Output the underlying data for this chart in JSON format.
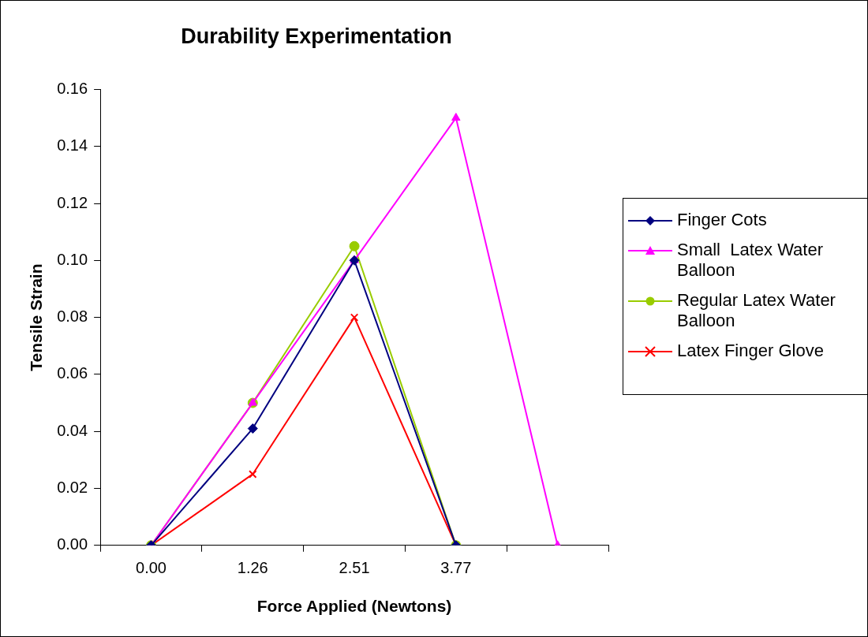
{
  "chart_data": {
    "type": "line",
    "title": "Durability Experimentation",
    "xlabel": "Force Applied (Newtons)",
    "ylabel": "Tensile Strain",
    "categories": [
      "0.00",
      "1.26",
      "2.51",
      "3.77",
      null
    ],
    "series": [
      {
        "name": "Finger Cots",
        "color": "#000080",
        "marker": "diamond",
        "values": [
          0,
          0.041,
          0.1,
          0,
          null
        ]
      },
      {
        "name": "Small  Latex Water Balloon",
        "color": "#ff00ff",
        "marker": "triangle",
        "values": [
          0,
          0.05,
          0.1,
          0.15,
          0
        ]
      },
      {
        "name": "Regular Latex Water Balloon",
        "color": "#99cc00",
        "marker": "circle",
        "values": [
          0,
          0.05,
          0.105,
          0,
          null
        ]
      },
      {
        "name": "Latex Finger Glove",
        "color": "#ff0000",
        "marker": "cross",
        "values": [
          0,
          0.025,
          0.08,
          0,
          null
        ]
      }
    ],
    "ylim": [
      0,
      0.16
    ],
    "yticks": [
      {
        "value": 0,
        "label": "0.00"
      },
      {
        "value": 0.02,
        "label": "0.02"
      },
      {
        "value": 0.04,
        "label": "0.04"
      },
      {
        "value": 0.06,
        "label": "0.06"
      },
      {
        "value": 0.08,
        "label": "0.08"
      },
      {
        "value": 0.1,
        "label": "0.10"
      },
      {
        "value": 0.12,
        "label": "0.12"
      },
      {
        "value": 0.14,
        "label": "0.14"
      },
      {
        "value": 0.16,
        "label": "0.16"
      }
    ],
    "grid": false,
    "legend": "right",
    "line_style": "solid"
  }
}
